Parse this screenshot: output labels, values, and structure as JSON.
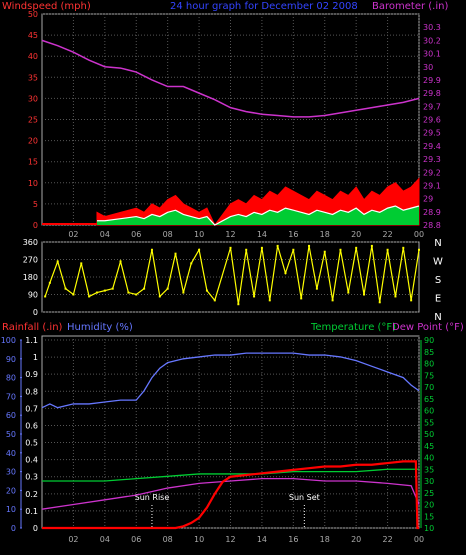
{
  "chart_data": [
    {
      "type": "line",
      "title": "24 hour graph for  December 02 2008",
      "left_axis_label": "Windspeed (mph)",
      "right_axis_label": "Barometer (.in)",
      "left_ylim": [
        0,
        50
      ],
      "left_yticks": [
        "0",
        "5",
        "10",
        "15",
        "20",
        "25",
        "30",
        "35",
        "40",
        "45",
        "50"
      ],
      "right_ylim": [
        28.8,
        30.4
      ],
      "right_yticks": [
        "28.8",
        "28.9",
        "29",
        "29.1",
        "29.2",
        "29.3",
        "29.4",
        "29.5",
        "29.6",
        "29.7",
        "29.8",
        "29.9",
        "30",
        "30.1",
        "30.2",
        "30.3"
      ],
      "x_ticks": [
        "02",
        "04",
        "06",
        "08",
        "10",
        "12",
        "14",
        "16",
        "18",
        "20",
        "22",
        "00"
      ],
      "x_hours": [
        0,
        24
      ],
      "grid": true,
      "colors": {
        "barometer": "#cc33cc",
        "gust": "#ff0000",
        "average": "#ffffff",
        "avg_fill": "#00cc33"
      },
      "series": [
        {
          "key": "barometer",
          "x": [
            0,
            1,
            2,
            3,
            4,
            5,
            6,
            7,
            8,
            9,
            10,
            11,
            12,
            13,
            14,
            15,
            16,
            17,
            18,
            19,
            20,
            21,
            22,
            23,
            24
          ],
          "values": [
            30.2,
            30.16,
            30.11,
            30.05,
            30.0,
            29.99,
            29.96,
            29.9,
            29.85,
            29.85,
            29.8,
            29.75,
            29.69,
            29.66,
            29.64,
            29.63,
            29.62,
            29.62,
            29.63,
            29.65,
            29.67,
            29.69,
            29.71,
            29.73,
            29.76
          ]
        },
        {
          "key": "gust",
          "x": [
            3.5,
            4.0,
            5.0,
            6.0,
            6.5,
            7.0,
            7.5,
            8.0,
            8.5,
            9.0,
            9.5,
            10.0,
            10.5,
            11.0,
            12.0,
            12.5,
            13.0,
            13.5,
            14.0,
            14.5,
            15.0,
            15.5,
            16.0,
            16.5,
            17.0,
            17.5,
            18.0,
            18.5,
            19.0,
            19.5,
            20.0,
            20.5,
            21.0,
            21.5,
            22.0,
            22.5,
            23.0,
            23.5,
            24.0
          ],
          "values": [
            3,
            2,
            3,
            4,
            3,
            5,
            4,
            6,
            7,
            5,
            4,
            3,
            4,
            0,
            5,
            6,
            5,
            7,
            6,
            8,
            7,
            9,
            8,
            7,
            6,
            8,
            7,
            6,
            8,
            7,
            9,
            6,
            8,
            7,
            9,
            10,
            8,
            9,
            11
          ]
        },
        {
          "key": "average",
          "x": [
            3.5,
            4.0,
            5.0,
            6.0,
            6.5,
            7.0,
            7.5,
            8.0,
            8.5,
            9.0,
            9.5,
            10.0,
            10.5,
            11.0,
            12.0,
            12.5,
            13.0,
            13.5,
            14.0,
            14.5,
            15.0,
            15.5,
            16.0,
            16.5,
            17.0,
            17.5,
            18.0,
            18.5,
            19.0,
            19.5,
            20.0,
            20.5,
            21.0,
            21.5,
            22.0,
            22.5,
            23.0,
            23.5,
            24.0
          ],
          "values": [
            1,
            1,
            1.5,
            2,
            1.5,
            2.5,
            2,
            3,
            3.5,
            2.5,
            2,
            1.5,
            2,
            0,
            2,
            2.5,
            2,
            3,
            2.5,
            3.5,
            3,
            4,
            3.5,
            3,
            2.5,
            3.5,
            3,
            2.5,
            3.5,
            3,
            4,
            2.5,
            3.5,
            3,
            4,
            4.5,
            3.5,
            4,
            4.5
          ]
        }
      ]
    },
    {
      "type": "scatter",
      "left_ylim": [
        0,
        360
      ],
      "left_yticks": [
        "0",
        "90",
        "180",
        "270",
        "360"
      ],
      "compass_labels": [
        "N",
        "W",
        "S",
        "E",
        "N"
      ],
      "x_hours": [
        0,
        24
      ],
      "colors": {
        "direction": "#ffff00"
      },
      "series": [
        {
          "key": "direction",
          "x": [
            0.2,
            0.5,
            1.0,
            1.5,
            2.0,
            2.5,
            3.0,
            3.5,
            4.0,
            4.5,
            5.0,
            5.5,
            6.0,
            6.5,
            7.0,
            7.5,
            8.0,
            8.5,
            9.0,
            9.5,
            10.0,
            10.5,
            11.0,
            12.0,
            12.5,
            13.0,
            13.5,
            14.0,
            14.5,
            15.0,
            15.5,
            16.0,
            16.5,
            17.0,
            17.5,
            18.0,
            18.5,
            19.0,
            19.5,
            20.0,
            20.5,
            21.0,
            21.5,
            22.0,
            22.5,
            23.0,
            23.5,
            24.0
          ],
          "values": [
            80,
            150,
            260,
            120,
            90,
            250,
            80,
            100,
            110,
            120,
            260,
            100,
            90,
            120,
            320,
            80,
            120,
            300,
            100,
            250,
            320,
            110,
            60,
            330,
            40,
            320,
            80,
            330,
            60,
            340,
            200,
            320,
            70,
            340,
            120,
            310,
            60,
            320,
            100,
            330,
            90,
            340,
            50,
            320,
            80,
            330,
            60,
            320
          ]
        }
      ]
    },
    {
      "type": "line",
      "left_axis_label_a": "Rainfall (.in)",
      "left_axis_label_b": "Humidity (%)",
      "right_axis_label_a": "Temperature (°F)",
      "right_axis_label_b": "Dew Point (°F)",
      "humidity_ylim": [
        0,
        100
      ],
      "humidity_yticks": [
        "0",
        "10",
        "20",
        "30",
        "40",
        "50",
        "60",
        "70",
        "80",
        "90",
        "100"
      ],
      "rain_ylim": [
        0,
        1.1
      ],
      "rain_yticks": [
        "0",
        "0.1",
        "0.2",
        "0.3",
        "0.4",
        "0.5",
        "0.6",
        "0.7",
        "0.8",
        "0.9",
        "1",
        "1.1"
      ],
      "temp_ylim": [
        10,
        90
      ],
      "temp_yticks": [
        "10",
        "15",
        "20",
        "25",
        "30",
        "35",
        "40",
        "45",
        "50",
        "55",
        "60",
        "65",
        "70",
        "75",
        "80",
        "85",
        "90"
      ],
      "x_ticks": [
        "02",
        "04",
        "06",
        "08",
        "10",
        "12",
        "14",
        "16",
        "18",
        "20",
        "22",
        "00"
      ],
      "x_hours": [
        0,
        24
      ],
      "annotations": [
        {
          "label": "Sun Rise",
          "hour": 7.0
        },
        {
          "label": "Sun Set",
          "hour": 16.7
        }
      ],
      "colors": {
        "humidity": "#6677ff",
        "rainfall": "#ff0000",
        "temperature": "#00cc33",
        "dew_point": "#cc33cc",
        "sun": "#ffffff"
      },
      "series": [
        {
          "key": "humidity",
          "x": [
            0,
            0.5,
            1,
            1.5,
            2,
            3,
            4,
            5,
            6,
            6.5,
            7,
            7.5,
            8,
            9,
            10,
            11,
            12,
            13,
            14,
            15,
            16,
            17,
            18,
            19,
            20,
            21,
            22,
            23,
            23.5,
            24
          ],
          "values": [
            64,
            66,
            64,
            65,
            66,
            66,
            67,
            68,
            68,
            73,
            80,
            85,
            88,
            90,
            91,
            92,
            92,
            93,
            93,
            93,
            93,
            92,
            92,
            91,
            89,
            86,
            83,
            80,
            76,
            73
          ]
        },
        {
          "key": "rainfall",
          "x": [
            0,
            8.5,
            9.0,
            9.5,
            10.0,
            10.5,
            11.0,
            11.5,
            12.0,
            13.0,
            14.0,
            15.0,
            16.0,
            17.0,
            18.0,
            19.0,
            20.0,
            21.0,
            22.0,
            23.0,
            23.8,
            23.9,
            24.0
          ],
          "values": [
            0,
            0,
            0.01,
            0.03,
            0.06,
            0.12,
            0.2,
            0.27,
            0.3,
            0.31,
            0.32,
            0.33,
            0.34,
            0.35,
            0.36,
            0.36,
            0.37,
            0.37,
            0.38,
            0.39,
            0.39,
            0.0,
            0.0
          ]
        },
        {
          "key": "temperature",
          "x": [
            0,
            2,
            4,
            6,
            8,
            10,
            12,
            14,
            16,
            18,
            20,
            22,
            24
          ],
          "values": [
            30,
            30,
            30,
            31,
            32,
            33,
            33,
            33,
            34,
            34,
            34,
            35,
            35
          ]
        },
        {
          "key": "dew_point",
          "x": [
            0,
            2,
            4,
            6,
            8,
            10,
            12,
            14,
            16,
            18,
            20,
            22,
            23.5,
            24
          ],
          "values": [
            18,
            20,
            22,
            24,
            27,
            29,
            30,
            31,
            31,
            30,
            30,
            29,
            28,
            20
          ]
        }
      ]
    }
  ]
}
